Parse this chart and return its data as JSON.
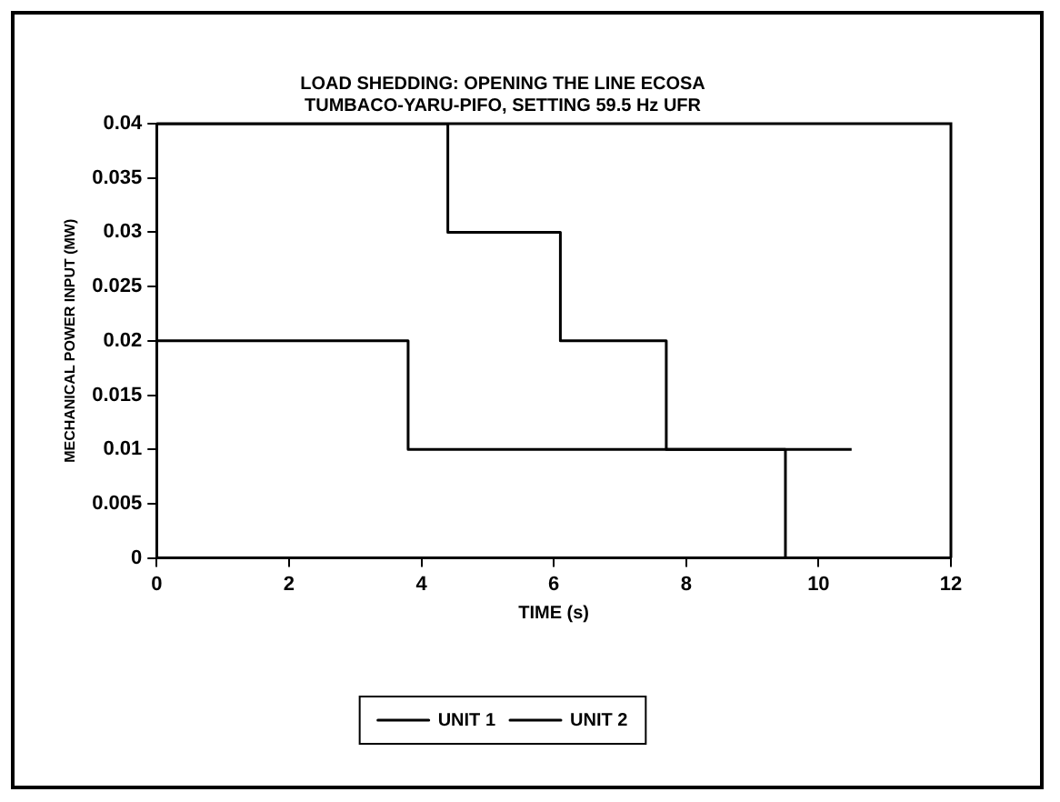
{
  "chart_data": {
    "type": "step",
    "title": "LOAD SHEDDING: OPENING THE LINE ECOSA",
    "subtitle": "TUMBACO-YARU-PIFO, SETTING 59.5 Hz UFR",
    "xlabel": "TIME (s)",
    "ylabel": "MECHANICAL POWER INPUT (MW)",
    "series": [
      {
        "name": "UNIT 1",
        "color": "#000000",
        "x": [
          0,
          3.8,
          10.5
        ],
        "values": [
          0.02,
          0.01,
          0.01
        ]
      },
      {
        "name": "UNIT 2",
        "color": "#000000",
        "x": [
          0,
          4.4,
          6.1,
          7.7,
          9.5
        ],
        "values": [
          0.04,
          0.03,
          0.02,
          0.01,
          0
        ]
      }
    ],
    "xlim": [
      0,
      12
    ],
    "xticks": [
      0,
      2,
      4,
      6,
      8,
      10,
      12
    ],
    "ylim": [
      0,
      0.04
    ],
    "yticks": [
      0,
      0.005,
      0.01,
      0.015,
      0.02,
      0.025,
      0.03,
      0.035,
      0.04
    ],
    "grid": false,
    "legend": "bottom",
    "marker": "none",
    "line_style": "solid"
  }
}
